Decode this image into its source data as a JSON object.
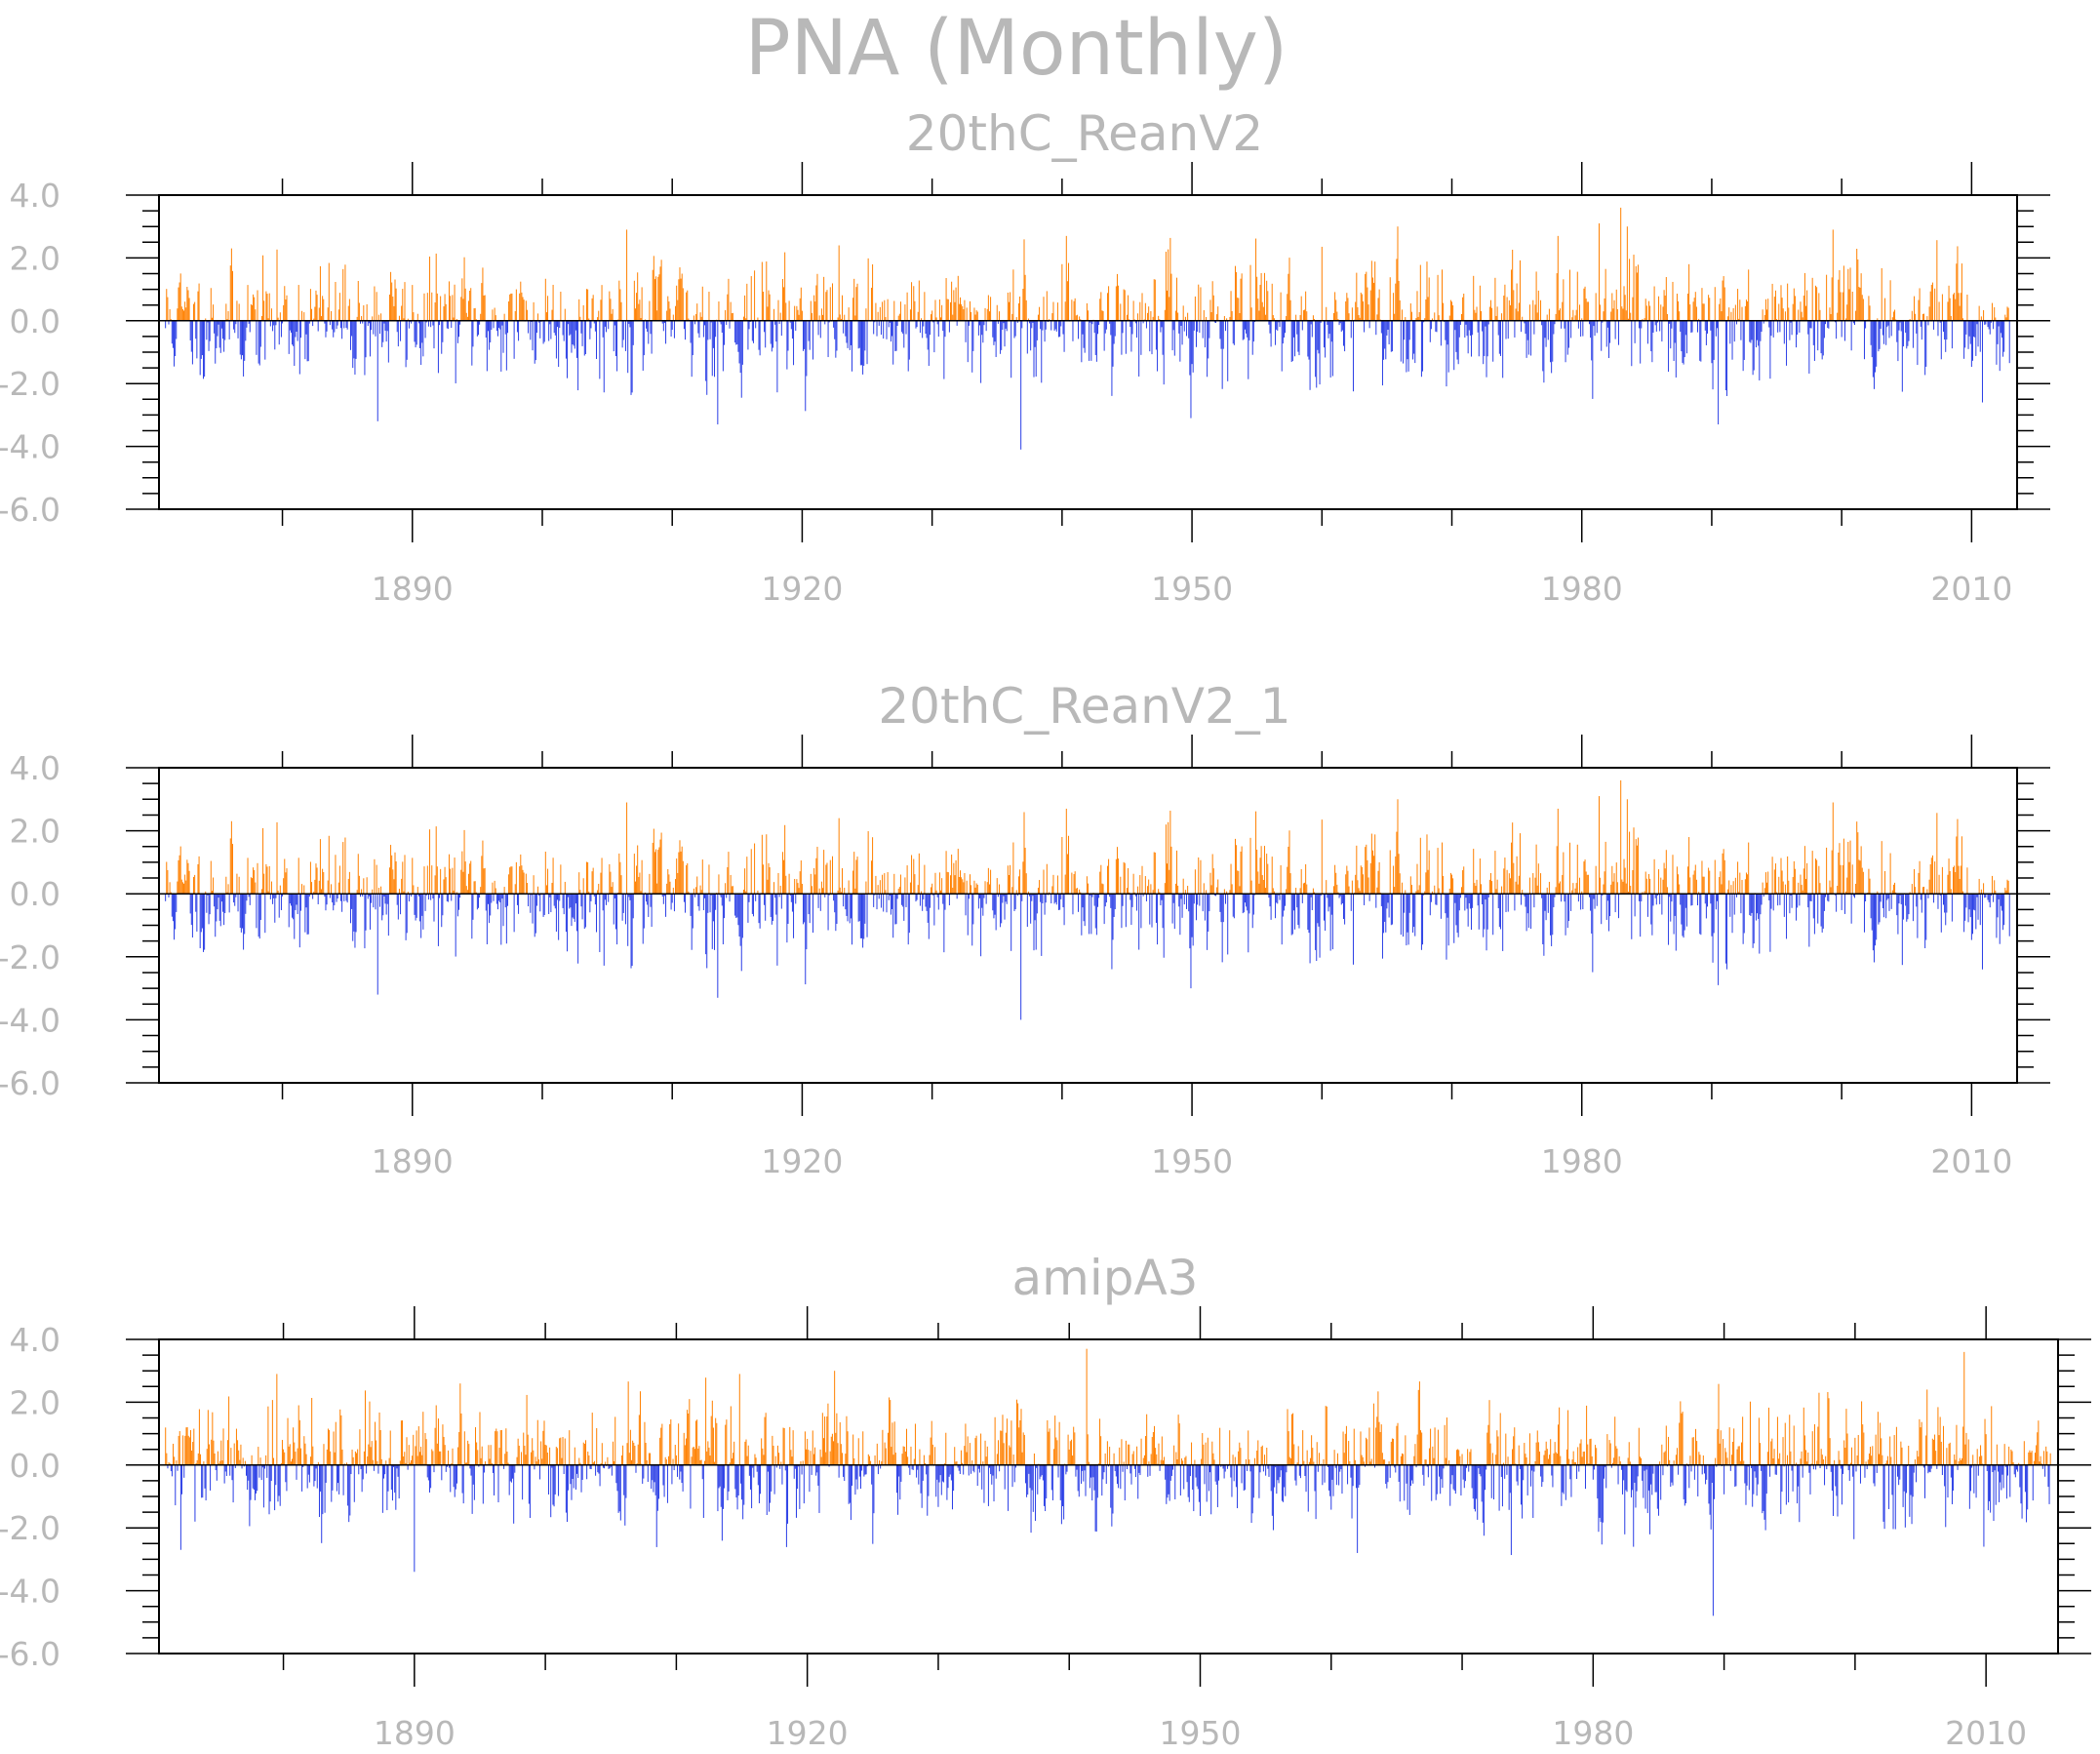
{
  "figure": {
    "title": "PNA (Monthly)",
    "positive_color": "#ff8000",
    "negative_color": "#2b3fe6"
  },
  "chart_data": [
    {
      "type": "bar",
      "title": "20thC_ReanV2",
      "x_start": 1871.0,
      "x_end": 2012.9,
      "xlim": [
        1870.5,
        2013.5
      ],
      "ylim": [
        -6.0,
        4.0
      ],
      "ytick_labels": [
        "4.0",
        "2.0",
        "0.0",
        "-2.0",
        "-4.0",
        "-6.0"
      ],
      "xtick_labels": [
        "1890",
        "1920",
        "1950",
        "1980",
        "2010"
      ],
      "grid": false,
      "seed": 11,
      "peaks": [
        [
          1887.3,
          -3.2
        ],
        [
          1913.5,
          -3.3
        ],
        [
          1936.8,
          -4.1
        ],
        [
          1949.9,
          -3.1
        ],
        [
          1983.0,
          3.6
        ],
        [
          1981.3,
          3.1
        ],
        [
          1990.5,
          -3.3
        ],
        [
          2010.8,
          -2.6
        ],
        [
          1940.3,
          2.7
        ],
        [
          1999.3,
          2.9
        ],
        [
          1906.5,
          2.9
        ],
        [
          1978.2,
          2.7
        ]
      ]
    },
    {
      "type": "bar",
      "title": "20thC_ReanV2_1",
      "x_start": 1871.0,
      "x_end": 2012.9,
      "xlim": [
        1870.5,
        2013.5
      ],
      "ylim": [
        -6.0,
        4.0
      ],
      "ytick_labels": [
        "4.0",
        "2.0",
        "0.0",
        "-2.0",
        "-4.0",
        "-6.0"
      ],
      "xtick_labels": [
        "1890",
        "1920",
        "1950",
        "1980",
        "2010"
      ],
      "grid": false,
      "seed": 11,
      "peaks": [
        [
          1887.3,
          -3.2
        ],
        [
          1913.5,
          -3.3
        ],
        [
          1936.8,
          -4.0
        ],
        [
          1949.9,
          -3.0
        ],
        [
          1983.0,
          3.6
        ],
        [
          1981.3,
          3.1
        ],
        [
          1990.5,
          -2.9
        ],
        [
          2010.8,
          -2.4
        ],
        [
          1940.3,
          2.7
        ],
        [
          1999.3,
          2.9
        ],
        [
          1906.5,
          2.9
        ],
        [
          1978.2,
          2.7
        ]
      ]
    },
    {
      "type": "bar",
      "title": "amipA3",
      "x_start": 1871.0,
      "x_end": 2014.9,
      "xlim": [
        1870.5,
        2015.5
      ],
      "ylim": [
        -6.0,
        4.0
      ],
      "ytick_labels": [
        "4.0",
        "2.0",
        "0.0",
        "-2.0",
        "-4.0",
        "-6.0"
      ],
      "xtick_labels": [
        "1890",
        "1920",
        "1950",
        "1980",
        "2010"
      ],
      "grid": false,
      "seed": 29,
      "peaks": [
        [
          1890.0,
          -3.4
        ],
        [
          1941.3,
          3.7
        ],
        [
          1989.2,
          -4.8
        ],
        [
          2008.3,
          3.6
        ],
        [
          1872.2,
          -2.7
        ],
        [
          1962.0,
          -2.8
        ],
        [
          1914.8,
          2.9
        ],
        [
          2009.8,
          -2.6
        ],
        [
          1879.5,
          2.9
        ]
      ]
    }
  ]
}
